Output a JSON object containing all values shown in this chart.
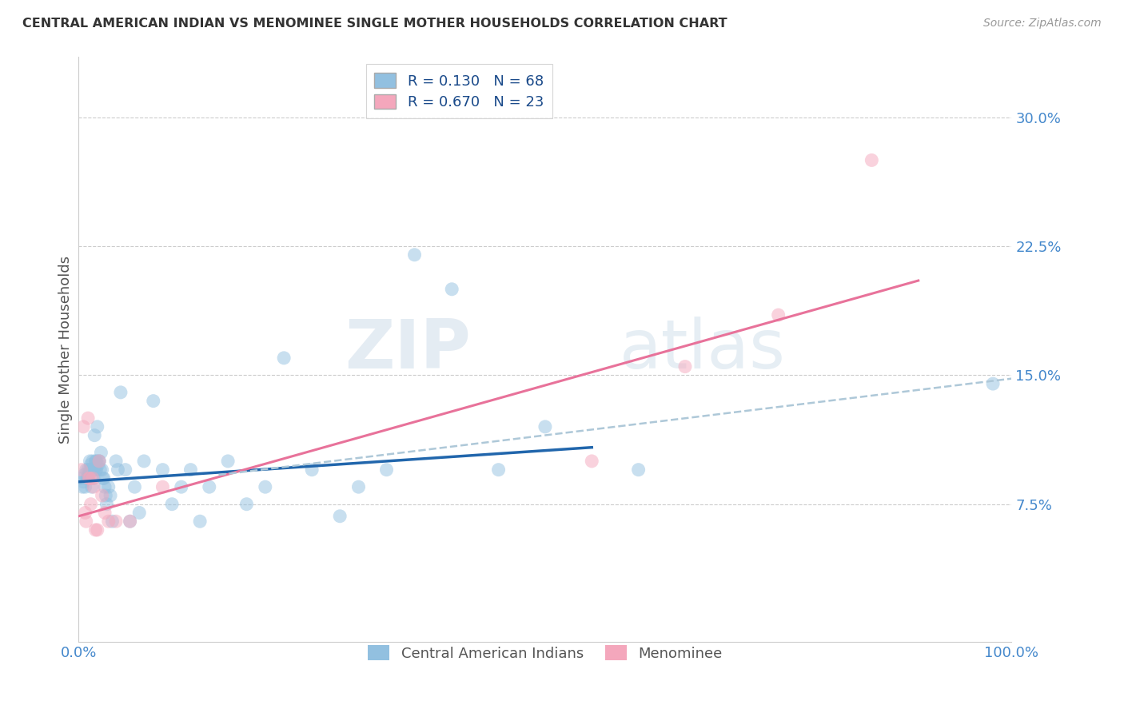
{
  "title": "CENTRAL AMERICAN INDIAN VS MENOMINEE SINGLE MOTHER HOUSEHOLDS CORRELATION CHART",
  "source": "Source: ZipAtlas.com",
  "ylabel": "Single Mother Households",
  "xlim": [
    0.0,
    1.0
  ],
  "ylim": [
    -0.005,
    0.335
  ],
  "xtick_positions": [
    0.0,
    0.5,
    1.0
  ],
  "xtick_labels_show": {
    "0.0": "0.0%",
    "0.5": "",
    "1.0": "100.0%"
  },
  "ytick_positions": [
    0.075,
    0.15,
    0.225,
    0.3
  ],
  "ytick_labels": [
    "7.5%",
    "15.0%",
    "22.5%",
    "30.0%"
  ],
  "grid_yticks": [
    0.075,
    0.15,
    0.225,
    0.3
  ],
  "legend_r1": "R = 0.130",
  "legend_n1": "N = 68",
  "legend_r2": "R = 0.670",
  "legend_n2": "N = 23",
  "color_blue": "#92c0e0",
  "color_pink": "#f4a7bc",
  "color_blue_line": "#2166ac",
  "color_pink_line": "#e8729a",
  "color_dashed": "#aec8d8",
  "watermark_zip": "ZIP",
  "watermark_atlas": "atlas",
  "blue_scatter_x": [
    0.002,
    0.004,
    0.005,
    0.006,
    0.007,
    0.008,
    0.009,
    0.01,
    0.01,
    0.011,
    0.012,
    0.012,
    0.013,
    0.013,
    0.014,
    0.015,
    0.015,
    0.016,
    0.016,
    0.017,
    0.018,
    0.018,
    0.019,
    0.019,
    0.02,
    0.021,
    0.022,
    0.022,
    0.023,
    0.024,
    0.025,
    0.026,
    0.027,
    0.028,
    0.029,
    0.03,
    0.032,
    0.034,
    0.036,
    0.04,
    0.042,
    0.045,
    0.05,
    0.055,
    0.06,
    0.065,
    0.07,
    0.08,
    0.09,
    0.1,
    0.11,
    0.12,
    0.13,
    0.14,
    0.16,
    0.18,
    0.2,
    0.22,
    0.25,
    0.28,
    0.3,
    0.33,
    0.36,
    0.4,
    0.45,
    0.5,
    0.6,
    0.98
  ],
  "blue_scatter_y": [
    0.09,
    0.085,
    0.088,
    0.092,
    0.085,
    0.095,
    0.09,
    0.095,
    0.09,
    0.092,
    0.1,
    0.095,
    0.095,
    0.098,
    0.085,
    0.1,
    0.095,
    0.095,
    0.09,
    0.115,
    0.1,
    0.095,
    0.095,
    0.1,
    0.12,
    0.098,
    0.1,
    0.1,
    0.095,
    0.105,
    0.095,
    0.09,
    0.09,
    0.085,
    0.08,
    0.075,
    0.085,
    0.08,
    0.065,
    0.1,
    0.095,
    0.14,
    0.095,
    0.065,
    0.085,
    0.07,
    0.1,
    0.135,
    0.095,
    0.075,
    0.085,
    0.095,
    0.065,
    0.085,
    0.1,
    0.075,
    0.085,
    0.16,
    0.095,
    0.068,
    0.085,
    0.095,
    0.22,
    0.2,
    0.095,
    0.12,
    0.095,
    0.145
  ],
  "pink_scatter_x": [
    0.003,
    0.005,
    0.007,
    0.008,
    0.01,
    0.011,
    0.012,
    0.013,
    0.015,
    0.016,
    0.018,
    0.02,
    0.022,
    0.025,
    0.028,
    0.032,
    0.04,
    0.055,
    0.09,
    0.55,
    0.65,
    0.75,
    0.85
  ],
  "pink_scatter_y": [
    0.095,
    0.12,
    0.07,
    0.065,
    0.125,
    0.09,
    0.09,
    0.075,
    0.09,
    0.085,
    0.06,
    0.06,
    0.1,
    0.08,
    0.07,
    0.065,
    0.065,
    0.065,
    0.085,
    0.1,
    0.155,
    0.185,
    0.275
  ],
  "blue_trendline_x": [
    0.0,
    0.55
  ],
  "blue_trendline_y": [
    0.088,
    0.108
  ],
  "pink_trendline_x": [
    0.0,
    0.9
  ],
  "pink_trendline_y": [
    0.068,
    0.205
  ],
  "dashed_trendline_x": [
    0.15,
    1.0
  ],
  "dashed_trendline_y": [
    0.092,
    0.148
  ]
}
